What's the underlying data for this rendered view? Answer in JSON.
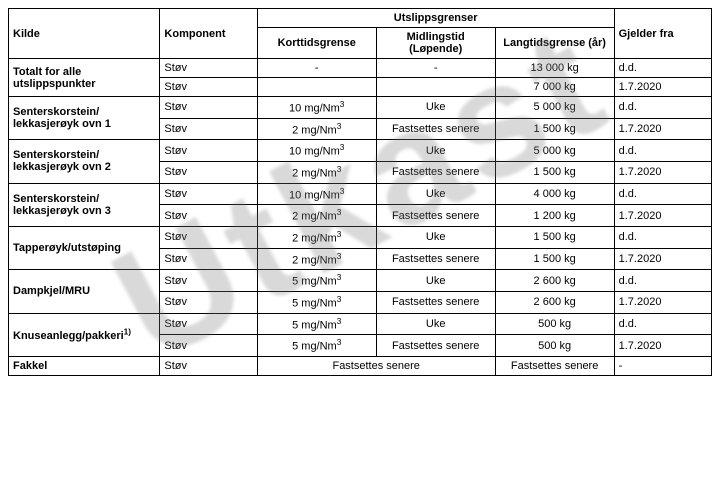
{
  "watermark": "Utkast",
  "headers": {
    "kilde": "Kilde",
    "komponent": "Komponent",
    "utslippsgrenser": "Utslippsgrenser",
    "korttid": "Korttidsgrense",
    "midling": "Midlingstid (Løpende)",
    "langtid": "Langtidsgrense (år)",
    "gjelder": "Gjelder fra"
  },
  "units": {
    "mgnm3": "mg/Nm",
    "sup3": "3"
  },
  "rows": {
    "r1": {
      "kilde": "Totalt for alle utslippspunkter",
      "komp": "Støv",
      "kort": "-",
      "mid": "-",
      "lang": "13 000 kg",
      "gj": "d.d."
    },
    "r2": {
      "komp": "Støv",
      "kort": "",
      "mid": "",
      "lang": "7 000 kg",
      "gj": "1.7.2020"
    },
    "r3": {
      "kilde": "Senterskorstein/ lekkasjerøyk ovn 1",
      "komp": "Støv",
      "kort": "10",
      "mid": "Uke",
      "lang": "5 000 kg",
      "gj": "d.d."
    },
    "r4": {
      "komp": "Støv",
      "kort": "2",
      "mid": "Fastsettes senere",
      "lang": "1 500 kg",
      "gj": "1.7.2020"
    },
    "r5": {
      "kilde": "Senterskorstein/ lekkasjerøyk ovn 2",
      "komp": "Støv",
      "kort": "10",
      "mid": "Uke",
      "lang": "5 000 kg",
      "gj": "d.d."
    },
    "r6": {
      "komp": "Støv",
      "kort": "2",
      "mid": "Fastsettes senere",
      "lang": "1 500 kg",
      "gj": "1.7.2020"
    },
    "r7": {
      "kilde": "Senterskorstein/ lekkasjerøyk ovn 3",
      "komp": "Støv",
      "kort": "10",
      "mid": "Uke",
      "lang": "4 000 kg",
      "gj": "d.d."
    },
    "r8": {
      "komp": "Støv",
      "kort": "2",
      "mid": "Fastsettes senere",
      "lang": "1 200 kg",
      "gj": "1.7.2020"
    },
    "r9": {
      "kilde": "Tapperøyk/utstøping",
      "komp": "Støv",
      "kort": "2",
      "mid": "Uke",
      "lang": "1 500 kg",
      "gj": "d.d."
    },
    "r10": {
      "komp": "Støv",
      "kort": "2",
      "mid": "Fastsettes senere",
      "lang": "1 500 kg",
      "gj": "1.7.2020"
    },
    "r11": {
      "kilde": "Dampkjel/MRU",
      "komp": "Støv",
      "kort": "5",
      "mid": "Uke",
      "lang": "2 600 kg",
      "gj": "d.d."
    },
    "r12": {
      "komp": "Støv",
      "kort": "5",
      "mid": "Fastsettes senere",
      "lang": "2 600 kg",
      "gj": "1.7.2020"
    },
    "r13": {
      "kilde": "Knuseanlegg/pakkeri",
      "foot": "1)",
      "komp": "Støv",
      "kort": "5",
      "mid": "Uke",
      "lang": "500 kg",
      "gj": "d.d."
    },
    "r14": {
      "komp": "Støv",
      "kort": "5",
      "mid": "Fastsettes senere",
      "lang": "500 kg",
      "gj": "1.7.2020"
    },
    "r15": {
      "kilde": "Fakkel",
      "komp": "Støv",
      "kort": "",
      "mid": "Fastsettes senere",
      "lang": "Fastsettes senere",
      "gj": "-"
    }
  }
}
